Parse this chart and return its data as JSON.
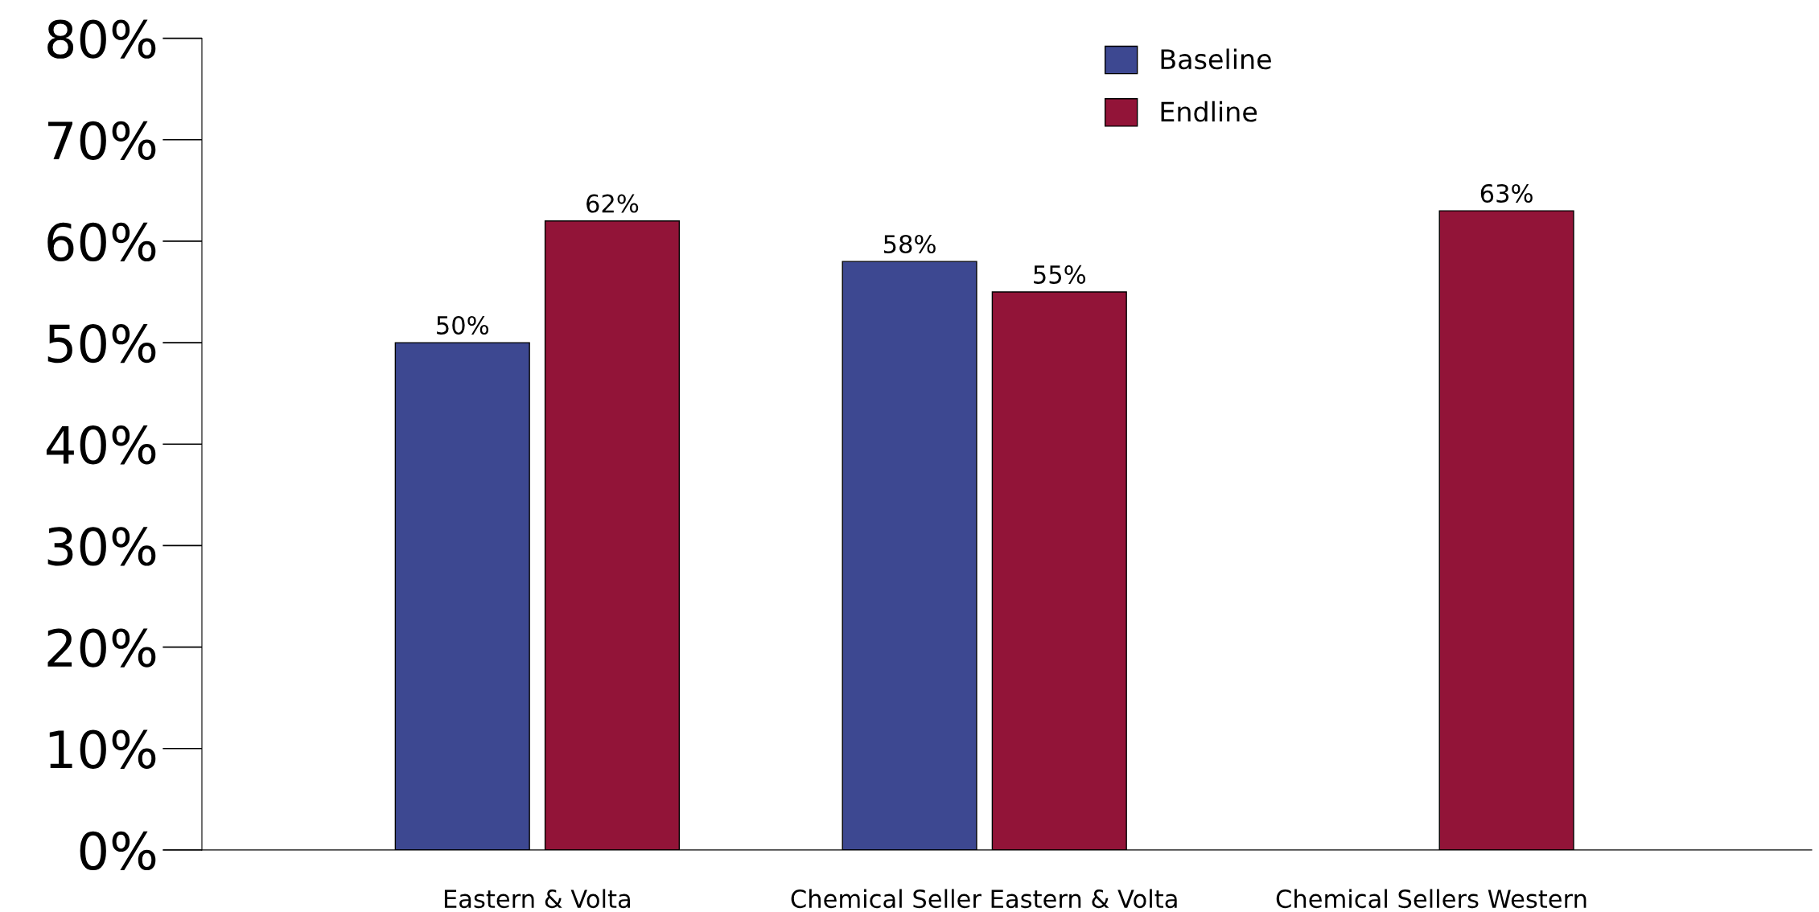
{
  "chart_data": {
    "type": "bar",
    "categories": [
      "Eastern & Volta",
      "Chemical Seller Eastern & Volta",
      "Chemical Sellers Western"
    ],
    "series": [
      {
        "name": "Baseline",
        "color": "#3d4891",
        "values": [
          50,
          58,
          null
        ],
        "value_labels": [
          "50%",
          "58%",
          null
        ]
      },
      {
        "name": "Endline",
        "color": "#921438",
        "values": [
          62,
          55,
          63
        ],
        "value_labels": [
          "62%",
          "55%",
          "63%"
        ]
      }
    ],
    "ylim": [
      0,
      80
    ],
    "yticks": [
      {
        "value": 0,
        "label": "0%"
      },
      {
        "value": 10,
        "label": "10%"
      },
      {
        "value": 20,
        "label": "20%"
      },
      {
        "value": 30,
        "label": "30%"
      },
      {
        "value": 40,
        "label": "40%"
      },
      {
        "value": 50,
        "label": "50%"
      },
      {
        "value": 60,
        "label": "60%"
      },
      {
        "value": 70,
        "label": "70%"
      },
      {
        "value": 80,
        "label": "80%"
      }
    ],
    "grid": false,
    "legend": "top right"
  }
}
